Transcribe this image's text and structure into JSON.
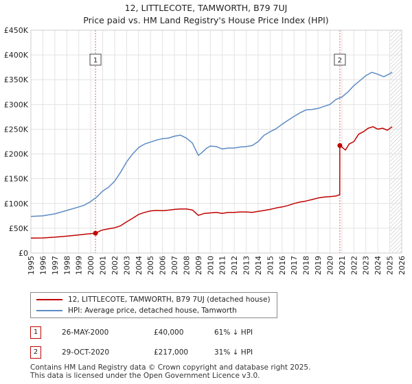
{
  "chart_data": {
    "type": "line",
    "title": "12, LITTLECOTE, TAMWORTH, B79 7UJ",
    "subtitle": "Price paid vs. HM Land Registry's House Price Index (HPI)",
    "xlim": [
      1995,
      2026
    ],
    "ylim": [
      0,
      450000
    ],
    "x_ticks": [
      "1995",
      "1996",
      "1997",
      "1998",
      "1999",
      "2000",
      "2001",
      "2002",
      "2003",
      "2004",
      "2005",
      "2006",
      "2007",
      "2008",
      "2009",
      "2010",
      "2011",
      "2012",
      "2013",
      "2014",
      "2015",
      "2016",
      "2017",
      "2018",
      "2019",
      "2020",
      "2021",
      "2022",
      "2023",
      "2024",
      "2025",
      "2026"
    ],
    "y_ticks": [
      {
        "value": 0,
        "label": "£0"
      },
      {
        "value": 50000,
        "label": "£50K"
      },
      {
        "value": 100000,
        "label": "£100K"
      },
      {
        "value": 150000,
        "label": "£150K"
      },
      {
        "value": 200000,
        "label": "£200K"
      },
      {
        "value": 250000,
        "label": "£250K"
      },
      {
        "value": 300000,
        "label": "£300K"
      },
      {
        "value": 350000,
        "label": "£350K"
      },
      {
        "value": 400000,
        "label": "£400K"
      },
      {
        "value": 450000,
        "label": "£450K"
      }
    ],
    "series": [
      {
        "name": "12, LITTLECOTE, TAMWORTH, B79 7UJ (detached house)",
        "color": "#c00000",
        "x": [
          1995.0,
          1996.0,
          1997.0,
          1998.0,
          1999.0,
          1999.5,
          2000.4,
          2000.9,
          2001.5,
          2002.0,
          2002.5,
          2003.0,
          2003.5,
          2004.0,
          2004.5,
          2005.0,
          2005.5,
          2006.0,
          2006.5,
          2007.0,
          2007.5,
          2008.0,
          2008.5,
          2009.0,
          2009.5,
          2010.0,
          2010.5,
          2011.0,
          2011.5,
          2012.0,
          2012.5,
          2013.0,
          2013.5,
          2014.0,
          2014.5,
          2015.0,
          2015.5,
          2016.0,
          2016.5,
          2017.0,
          2017.5,
          2018.0,
          2018.5,
          2019.0,
          2019.5,
          2020.0,
          2020.5,
          2020.82,
          2020.83,
          2021.0,
          2021.3,
          2021.6,
          2022.0,
          2022.4,
          2022.8,
          2023.2,
          2023.6,
          2024.0,
          2024.4,
          2024.8,
          2025.2
        ],
        "values": [
          30000,
          30500,
          32000,
          34000,
          36500,
          38000,
          40000,
          46000,
          49000,
          51000,
          55000,
          63000,
          70000,
          78000,
          82000,
          85000,
          86000,
          85500,
          86500,
          88000,
          89000,
          89000,
          87000,
          76000,
          80000,
          81000,
          82000,
          80000,
          82000,
          82000,
          83000,
          83000,
          82000,
          84000,
          86000,
          88000,
          91000,
          93000,
          96000,
          100000,
          103000,
          105000,
          108000,
          111000,
          113000,
          114000,
          115000,
          118000,
          217000,
          214000,
          208000,
          220000,
          225000,
          240000,
          245000,
          252000,
          255000,
          250000,
          252000,
          248000,
          255000
        ]
      },
      {
        "name": "HPI: Average price, detached house, Tamworth",
        "color": "#5b8ac4",
        "x": [
          1995.0,
          1996.0,
          1997.0,
          1998.0,
          1999.0,
          1999.5,
          2000.0,
          2000.5,
          2001.0,
          2001.5,
          2002.0,
          2002.5,
          2003.0,
          2003.5,
          2004.0,
          2004.5,
          2005.0,
          2005.5,
          2006.0,
          2006.5,
          2007.0,
          2007.5,
          2008.0,
          2008.5,
          2009.0,
          2009.3,
          2009.7,
          2010.0,
          2010.5,
          2011.0,
          2011.5,
          2012.0,
          2012.5,
          2013.0,
          2013.5,
          2014.0,
          2014.5,
          2015.0,
          2015.5,
          2016.0,
          2016.5,
          2017.0,
          2017.5,
          2018.0,
          2018.5,
          2019.0,
          2019.5,
          2020.0,
          2020.5,
          2021.0,
          2021.5,
          2022.0,
          2022.5,
          2023.0,
          2023.5,
          2024.0,
          2024.5,
          2025.0,
          2025.2
        ],
        "values": [
          74000,
          75000,
          79000,
          86000,
          93000,
          97000,
          104000,
          113000,
          125000,
          133000,
          145000,
          163000,
          184000,
          200000,
          213000,
          220000,
          224000,
          228000,
          231000,
          232000,
          236000,
          238000,
          232000,
          222000,
          197000,
          203000,
          212000,
          216000,
          215000,
          210000,
          212000,
          212000,
          214000,
          215000,
          217000,
          225000,
          238000,
          245000,
          251000,
          260000,
          268000,
          276000,
          283000,
          289000,
          290000,
          292000,
          296000,
          300000,
          310000,
          315000,
          325000,
          338000,
          348000,
          358000,
          365000,
          361000,
          356000,
          362000,
          365000
        ]
      }
    ],
    "markers": [
      {
        "label": "1",
        "x": 2000.4,
        "value": 40000
      },
      {
        "label": "2",
        "x": 2020.83,
        "value": 217000
      }
    ],
    "hatch_from": 2025.0,
    "legend": [
      {
        "label": "12, LITTLECOTE, TAMWORTH, B79 7UJ (detached house)",
        "color": "#c00000"
      },
      {
        "label": "HPI: Average price, detached house, Tamworth",
        "color": "#5b8ac4"
      }
    ]
  },
  "transactions": [
    {
      "num": "1",
      "date": "26-MAY-2000",
      "price": "£40,000",
      "hpi": "61% ↓ HPI"
    },
    {
      "num": "2",
      "date": "29-OCT-2020",
      "price": "£217,000",
      "hpi": "31% ↓ HPI"
    }
  ],
  "footer": {
    "line1": "Contains HM Land Registry data © Crown copyright and database right 2025.",
    "line2": "This data is licensed under the Open Government Licence v3.0."
  }
}
